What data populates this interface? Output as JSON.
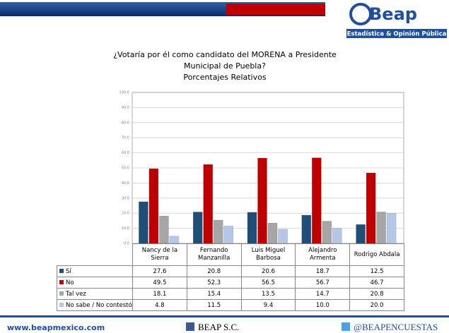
{
  "header": {
    "logo": "Beap",
    "tagline": "Estadística & Opinión Pública"
  },
  "chart_data": {
    "type": "bar",
    "title": "¿Votaría por él como candidato del MORENA a Presidente Municipal de Puebla?",
    "subtitle": "Porcentajes Relativos",
    "categories": [
      "Nancy de la Sierra",
      "Fernando Manzanilla",
      "Luis Miguel Barbosa",
      "Alejandro Armenta",
      "Rodrigo Abdala"
    ],
    "series": [
      {
        "name": "Sí",
        "color": "#1f4e79",
        "values": [
          27.6,
          20.8,
          20.6,
          18.7,
          12.5
        ],
        "value_labels": [
          "27.6",
          "20.8",
          "20.6",
          "18.7",
          "12.5"
        ]
      },
      {
        "name": "No",
        "color": "#c00000",
        "values": [
          49.5,
          52.3,
          56.5,
          56.7,
          46.7
        ],
        "value_labels": [
          "49.5",
          "52.3",
          "56.5",
          "56.7",
          "46.7"
        ]
      },
      {
        "name": "Tal vez",
        "color": "#a6a6a6",
        "values": [
          18.1,
          15.4,
          13.5,
          14.7,
          20.8
        ],
        "value_labels": [
          "18.1",
          "15.4",
          "13.5",
          "14.7",
          "20.8"
        ]
      },
      {
        "name": "No sabe / No contestó",
        "color": "#b4c7e7",
        "values": [
          4.8,
          11.5,
          9.4,
          10.0,
          20.0
        ],
        "value_labels": [
          "4.8",
          "11.5",
          "9.4",
          "10.0",
          "20.0"
        ]
      }
    ],
    "ylim": [
      0,
      100
    ],
    "yticks": [
      {
        "value": 0,
        "label": "0.0"
      },
      {
        "value": 10,
        "label": "10.0"
      },
      {
        "value": 20,
        "label": "20.0"
      },
      {
        "value": 30,
        "label": "30.0"
      },
      {
        "value": 40,
        "label": "40.0"
      },
      {
        "value": 50,
        "label": "50.0"
      },
      {
        "value": 60,
        "label": "60.0"
      },
      {
        "value": 70,
        "label": "70.0"
      },
      {
        "value": 80,
        "label": "80.0"
      },
      {
        "value": 90,
        "label": "90.0"
      },
      {
        "value": 100,
        "label": "100.0"
      }
    ],
    "grid": true
  },
  "footer": {
    "website": "www.beapmexico.com",
    "facebook": "BEAP S.C.",
    "twitter": "@BEAPENCUESTAS"
  }
}
